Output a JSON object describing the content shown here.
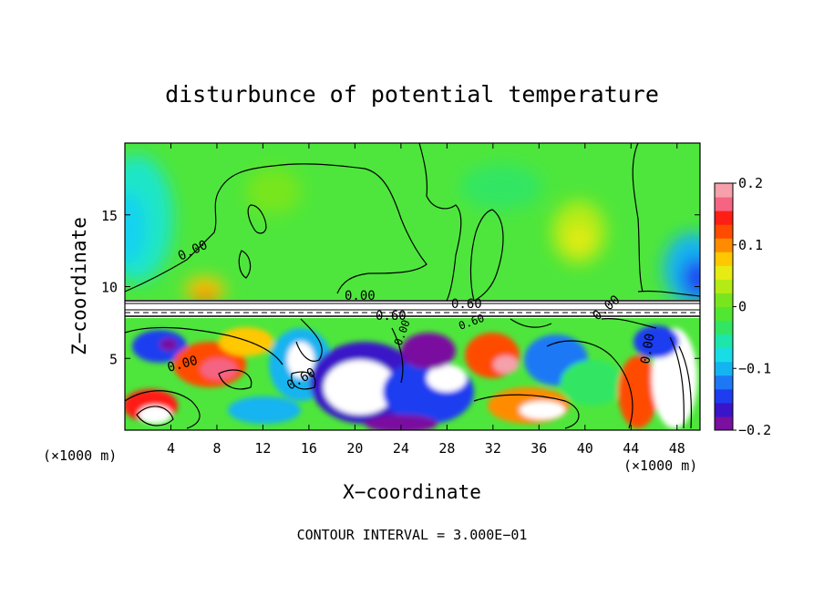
{
  "chart_data": {
    "type": "heatmap",
    "title": "disturbunce of potential temperature",
    "xlabel": "X−coordinate",
    "ylabel": "Z−coordinate",
    "x_units_left": "(×1000 m)",
    "x_units_right": "(×1000 m)",
    "xlim": [
      0,
      50
    ],
    "ylim": [
      0,
      20
    ],
    "x_ticks": [
      4,
      8,
      12,
      16,
      20,
      24,
      28,
      32,
      36,
      40,
      44,
      48
    ],
    "x_tick_labels": [
      "4",
      "8",
      "12",
      "16",
      "20",
      "24",
      "28",
      "32",
      "36",
      "40",
      "44",
      "48"
    ],
    "y_ticks": [
      5,
      10,
      15
    ],
    "y_tick_labels": [
      "5",
      "10",
      "15"
    ],
    "colorbar": {
      "range": [
        -0.2,
        0.2
      ],
      "ticks": [
        -0.2,
        -0.1,
        0,
        0.1,
        0.2
      ],
      "tick_labels": [
        "−0.2",
        "−0.1",
        "0",
        "0.1",
        "0.2"
      ],
      "colors": [
        "#7a0fa0",
        "#3a14c8",
        "#1e3cf0",
        "#1e78f5",
        "#14b4f0",
        "#18dce6",
        "#1ee6aa",
        "#32e664",
        "#50e632",
        "#78e61e",
        "#b4eb14",
        "#e6eb14",
        "#ffc800",
        "#ff8c00",
        "#ff4b00",
        "#ff1e14",
        "#f56482",
        "#f5a0aa"
      ]
    },
    "contour_labels": [
      "0.00",
      "0.00",
      "0.60",
      "0.60",
      "0.60",
      "0.00",
      "0.00",
      "0.00",
      "0.00",
      "0.60"
    ],
    "footer": "CONTOUR INTERVAL = 3.000E−01",
    "grid": false
  }
}
